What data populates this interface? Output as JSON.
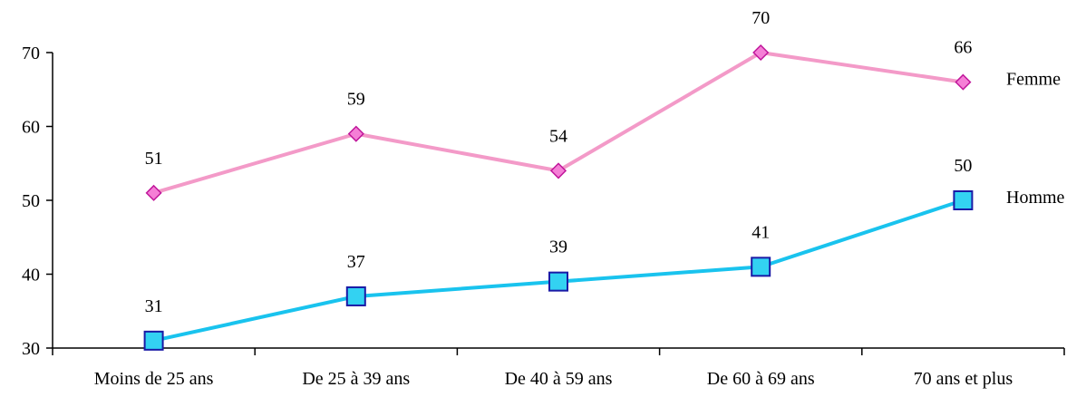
{
  "chart_data": {
    "type": "line",
    "categories": [
      "Moins de 25 ans",
      "De 25 à 39 ans",
      "De 40 à 59 ans",
      "De 60 à 69 ans",
      "70 ans et plus"
    ],
    "series": [
      {
        "name": "Femme",
        "values": [
          51,
          59,
          54,
          70,
          66
        ],
        "color": "#f39ac8",
        "marker": "diamond",
        "marker_fill": "#f57fd6",
        "marker_stroke": "#c0159a"
      },
      {
        "name": "Homme",
        "values": [
          31,
          37,
          39,
          41,
          50
        ],
        "color": "#19c3ee",
        "marker": "square",
        "marker_fill": "#33d2f2",
        "marker_stroke": "#1a1aa6"
      }
    ],
    "ylim": [
      30,
      70
    ],
    "yticks": [
      30,
      40,
      50,
      60,
      70
    ],
    "title": "",
    "xlabel": "",
    "ylabel": "",
    "grid": false,
    "legend": "right, labels at line ends",
    "data_labels": true
  }
}
